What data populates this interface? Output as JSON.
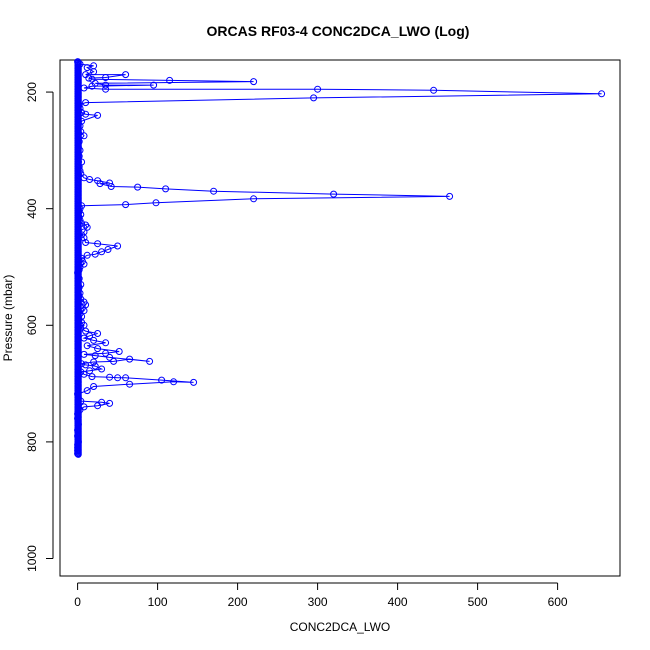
{
  "chart_data": {
    "type": "line",
    "title": "ORCAS RF03-4 CONC2DCA_LWO (Log)",
    "xlabel": "CONC2DCA_LWO",
    "ylabel": "Pressure (mbar)",
    "xlim": [
      -22,
      678
    ],
    "ylim": [
      1030,
      145
    ],
    "y_reversed": true,
    "grid": false,
    "xticks": [
      0,
      100,
      200,
      300,
      400,
      500,
      600
    ],
    "yticks": [
      200,
      400,
      600,
      800,
      1000
    ],
    "marker": "open-circle",
    "series_color": "#0000ff",
    "series": [
      {
        "name": "",
        "points": [
          [
            0,
            820
          ],
          [
            0,
            815
          ],
          [
            0,
            810
          ],
          [
            0,
            805
          ],
          [
            1,
            800
          ],
          [
            0,
            790
          ],
          [
            0,
            780
          ],
          [
            1,
            770
          ],
          [
            0,
            760
          ],
          [
            0,
            752
          ],
          [
            3,
            745
          ],
          [
            8,
            740
          ],
          [
            25,
            738
          ],
          [
            40,
            734
          ],
          [
            30,
            732
          ],
          [
            4,
            730
          ],
          [
            1,
            725
          ],
          [
            0,
            718
          ],
          [
            12,
            712
          ],
          [
            20,
            705
          ],
          [
            65,
            701
          ],
          [
            120,
            697
          ],
          [
            145,
            698
          ],
          [
            105,
            694
          ],
          [
            60,
            690
          ],
          [
            50,
            690
          ],
          [
            40,
            689
          ],
          [
            18,
            688
          ],
          [
            8,
            684
          ],
          [
            4,
            680
          ],
          [
            15,
            678
          ],
          [
            30,
            675
          ],
          [
            22,
            670
          ],
          [
            10,
            668
          ],
          [
            5,
            666
          ],
          [
            20,
            663
          ],
          [
            45,
            662
          ],
          [
            65,
            658
          ],
          [
            90,
            662
          ],
          [
            40,
            655
          ],
          [
            22,
            652
          ],
          [
            8,
            650
          ],
          [
            35,
            648
          ],
          [
            52,
            645
          ],
          [
            25,
            640
          ],
          [
            12,
            635
          ],
          [
            35,
            630
          ],
          [
            20,
            626
          ],
          [
            8,
            622
          ],
          [
            15,
            618
          ],
          [
            25,
            614
          ],
          [
            10,
            610
          ],
          [
            4,
            605
          ],
          [
            8,
            600
          ],
          [
            5,
            595
          ],
          [
            2,
            590
          ],
          [
            5,
            585
          ],
          [
            3,
            580
          ],
          [
            8,
            575
          ],
          [
            6,
            570
          ],
          [
            10,
            565
          ],
          [
            8,
            560
          ],
          [
            4,
            555
          ],
          [
            2,
            550
          ],
          [
            3,
            545
          ],
          [
            1,
            540
          ],
          [
            2,
            535
          ],
          [
            4,
            530
          ],
          [
            2,
            520
          ],
          [
            0,
            510
          ],
          [
            2,
            505
          ],
          [
            3,
            500
          ],
          [
            8,
            495
          ],
          [
            6,
            490
          ],
          [
            5,
            485
          ],
          [
            12,
            480
          ],
          [
            22,
            478
          ],
          [
            30,
            474
          ],
          [
            38,
            470
          ],
          [
            50,
            464
          ],
          [
            25,
            460
          ],
          [
            10,
            458
          ],
          [
            8,
            450
          ],
          [
            5,
            445
          ],
          [
            8,
            440
          ],
          [
            12,
            432
          ],
          [
            10,
            428
          ],
          [
            5,
            425
          ],
          [
            3,
            420
          ],
          [
            2,
            415
          ],
          [
            4,
            410
          ],
          [
            2,
            405
          ],
          [
            3,
            400
          ],
          [
            5,
            395
          ],
          [
            60,
            393
          ],
          [
            98,
            390
          ],
          [
            220,
            383
          ],
          [
            465,
            379
          ],
          [
            320,
            375
          ],
          [
            170,
            370
          ],
          [
            110,
            366
          ],
          [
            75,
            363
          ],
          [
            42,
            362
          ],
          [
            28,
            357
          ],
          [
            40,
            356
          ],
          [
            25,
            352
          ],
          [
            15,
            350
          ],
          [
            8,
            347
          ],
          [
            4,
            340
          ],
          [
            3,
            335
          ],
          [
            2,
            328
          ],
          [
            5,
            320
          ],
          [
            2,
            310
          ],
          [
            3,
            300
          ],
          [
            1,
            295
          ],
          [
            2,
            285
          ],
          [
            8,
            275
          ],
          [
            4,
            268
          ],
          [
            3,
            258
          ],
          [
            5,
            250
          ],
          [
            25,
            240
          ],
          [
            10,
            238
          ],
          [
            5,
            235
          ],
          [
            3,
            228
          ],
          [
            2,
            222
          ],
          [
            10,
            218
          ],
          [
            295,
            210
          ],
          [
            655,
            203
          ],
          [
            445,
            197
          ],
          [
            300,
            195
          ],
          [
            35,
            195
          ],
          [
            8,
            193
          ],
          [
            18,
            190
          ],
          [
            95,
            188
          ],
          [
            35,
            188
          ],
          [
            22,
            185
          ],
          [
            220,
            182
          ],
          [
            115,
            180
          ],
          [
            18,
            178
          ],
          [
            14,
            176
          ],
          [
            35,
            175
          ],
          [
            60,
            170
          ],
          [
            10,
            170
          ],
          [
            20,
            165
          ],
          [
            12,
            158
          ],
          [
            20,
            155
          ],
          [
            3,
            152
          ],
          [
            0,
            148
          ]
        ]
      }
    ]
  }
}
